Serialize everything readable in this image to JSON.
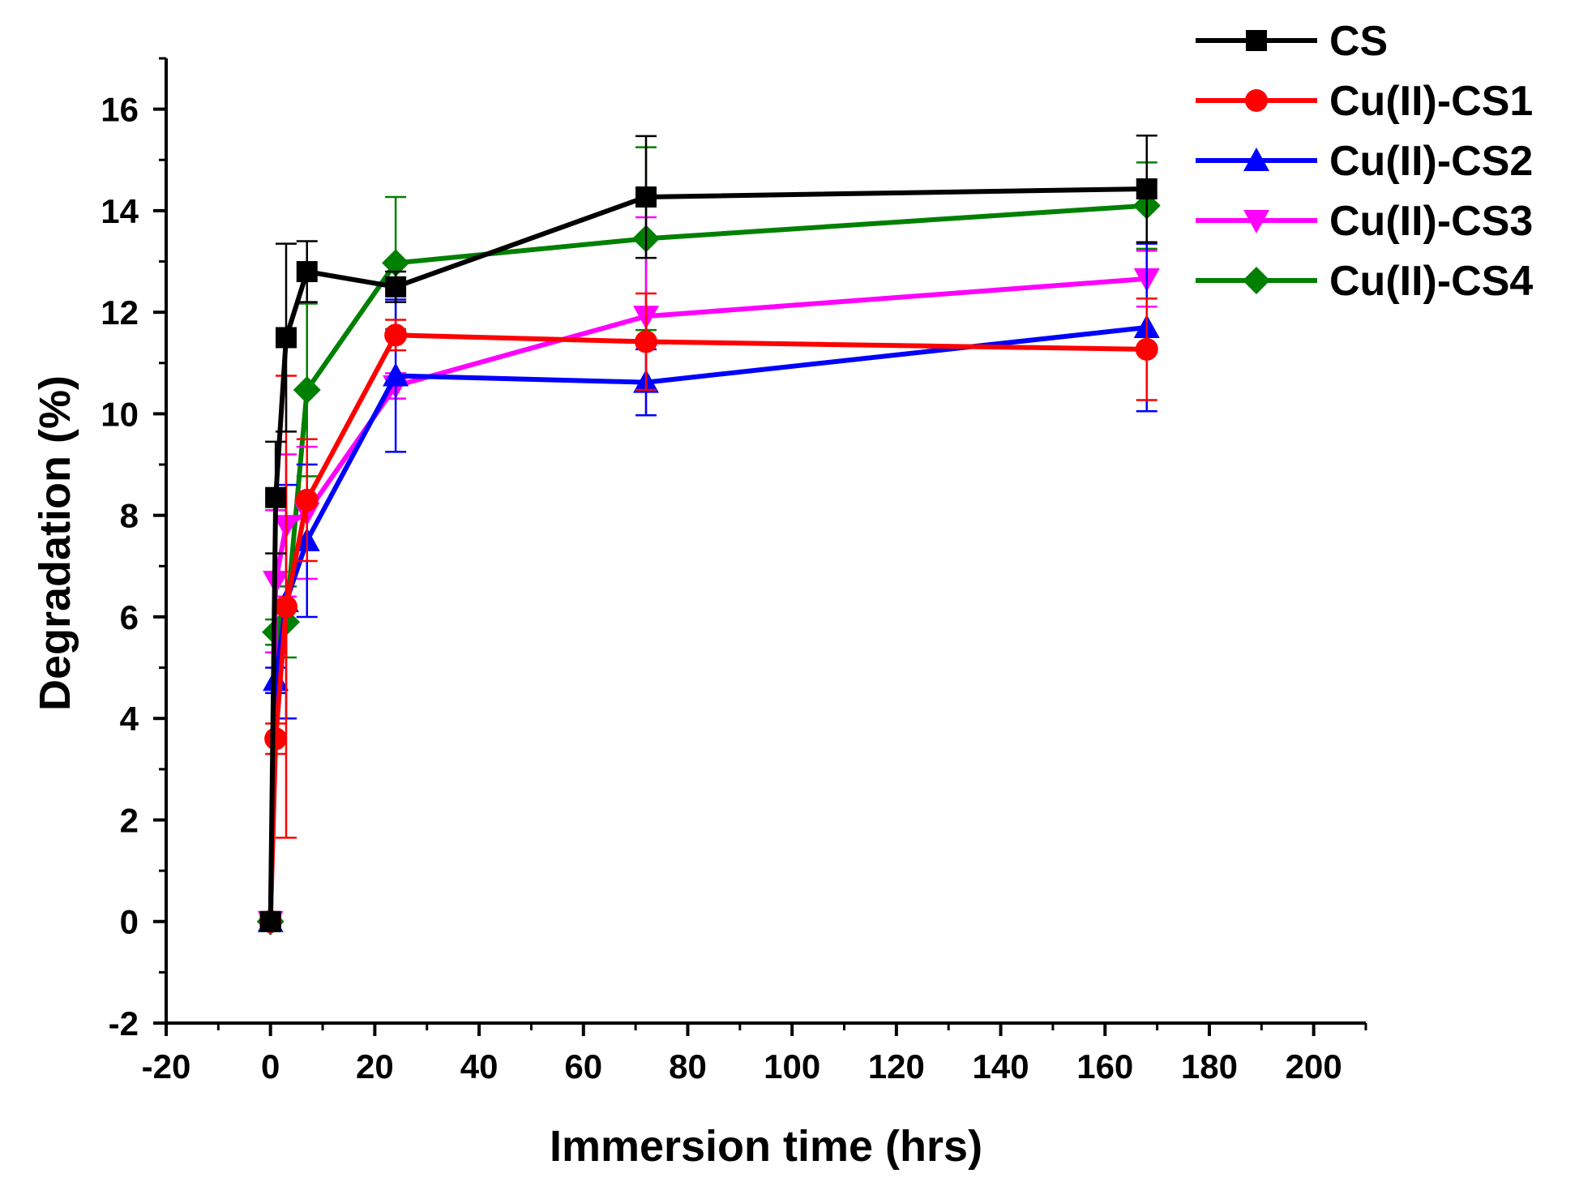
{
  "chart_data": {
    "type": "line",
    "title": "",
    "xlabel": "Immersion time (hrs)",
    "ylabel": "Degradation (%)",
    "xlim": [
      -20,
      210
    ],
    "ylim": [
      -2,
      17
    ],
    "xticks": [
      -20,
      0,
      20,
      40,
      60,
      80,
      100,
      120,
      140,
      160,
      180,
      200
    ],
    "yticks": [
      -2,
      0,
      2,
      4,
      6,
      8,
      10,
      12,
      14,
      16
    ],
    "legend_position": "top-right",
    "grid": false,
    "x": [
      0,
      1,
      3,
      7,
      24,
      72,
      168
    ],
    "series": [
      {
        "name": "CS",
        "color": "#000000",
        "marker": "square",
        "values": [
          0,
          8.35,
          11.5,
          12.8,
          12.5,
          14.27,
          14.43
        ],
        "errors": [
          0.1,
          1.1,
          1.85,
          0.6,
          0.3,
          1.2,
          1.05
        ]
      },
      {
        "name": "Cu(II)-CS1",
        "color": "#ff0000",
        "marker": "circle",
        "values": [
          0,
          3.6,
          6.2,
          8.3,
          11.55,
          11.42,
          11.27
        ],
        "errors": [
          0.1,
          0.3,
          4.55,
          1.2,
          0.3,
          0.95,
          1.0
        ]
      },
      {
        "name": "Cu(II)-CS2",
        "color": "#0000ff",
        "marker": "triangle-up",
        "values": [
          0,
          4.75,
          6.3,
          7.5,
          10.75,
          10.62,
          11.7
        ],
        "errors": [
          0.1,
          0.25,
          2.3,
          1.5,
          1.5,
          0.65,
          1.65
        ]
      },
      {
        "name": "Cu(II)-CS3",
        "color": "#ff00ff",
        "marker": "triangle-down",
        "values": [
          0,
          6.7,
          7.8,
          8.05,
          10.55,
          11.92,
          12.66
        ],
        "errors": [
          0.1,
          1.4,
          1.4,
          1.3,
          0.25,
          1.95,
          0.55
        ]
      },
      {
        "name": "Cu(II)-CS4",
        "color": "#008000",
        "marker": "diamond",
        "values": [
          0,
          5.7,
          5.9,
          10.47,
          12.97,
          13.45,
          14.1
        ],
        "errors": [
          0.1,
          0.25,
          0.7,
          1.7,
          1.3,
          1.8,
          0.85
        ]
      }
    ]
  }
}
